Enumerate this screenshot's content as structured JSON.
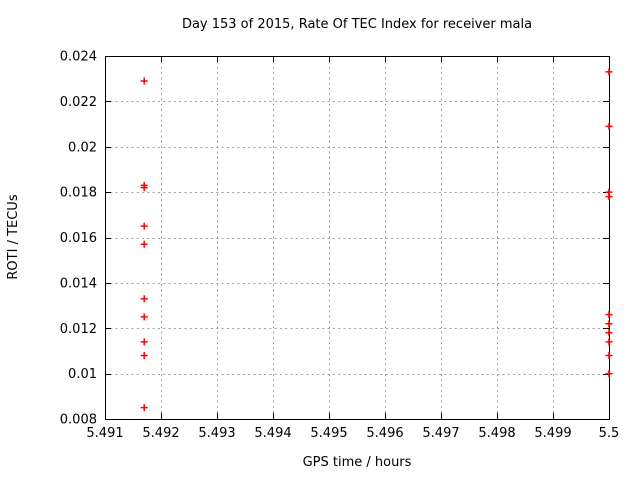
{
  "window": {
    "background": "#ffffff"
  },
  "chart_data": {
    "type": "scatter",
    "title": "Day 153 of 2015, Rate Of TEC Index for receiver mala",
    "xlabel": "GPS time / hours",
    "ylabel": "ROTI / TECUs",
    "xlim": [
      5.491,
      5.5
    ],
    "ylim": [
      0.008,
      0.024
    ],
    "xticks": {
      "values": [
        5.491,
        5.492,
        5.493,
        5.494,
        5.495,
        5.496,
        5.497,
        5.498,
        5.499,
        5.5
      ],
      "labels": [
        "5.491",
        "5.492",
        "5.493",
        "5.494",
        "5.495",
        "5.496",
        "5.497",
        "5.498",
        "5.499",
        "5.5"
      ]
    },
    "yticks": {
      "values": [
        0.008,
        0.01,
        0.012,
        0.014,
        0.016,
        0.018,
        0.02,
        0.022,
        0.024
      ],
      "labels": [
        "0.008",
        "0.01",
        "0.012",
        "0.014",
        "0.016",
        "0.018",
        "0.02",
        "0.022",
        "0.024"
      ]
    },
    "grid": true,
    "legend_position": "none",
    "marker": {
      "shape": "plus",
      "color": "#ff0000",
      "size": 3.5,
      "stroke_width": 1.5
    },
    "axis_color": "#000000",
    "grid_color": "#a0a0a0",
    "series": [
      {
        "name": "ROTI",
        "points": [
          [
            5.4917,
            0.0229
          ],
          [
            5.4917,
            0.0183
          ],
          [
            5.4917,
            0.0182
          ],
          [
            5.4917,
            0.0165
          ],
          [
            5.4917,
            0.0157
          ],
          [
            5.4917,
            0.0133
          ],
          [
            5.4917,
            0.0125
          ],
          [
            5.4917,
            0.0114
          ],
          [
            5.4917,
            0.0108
          ],
          [
            5.4917,
            0.0085
          ],
          [
            5.5,
            0.0233
          ],
          [
            5.5,
            0.0209
          ],
          [
            5.5,
            0.018
          ],
          [
            5.5,
            0.0178
          ],
          [
            5.5,
            0.0126
          ],
          [
            5.5,
            0.0122
          ],
          [
            5.5,
            0.0118
          ],
          [
            5.5,
            0.0114
          ],
          [
            5.5,
            0.0108
          ],
          [
            5.5,
            0.01
          ]
        ]
      }
    ]
  }
}
